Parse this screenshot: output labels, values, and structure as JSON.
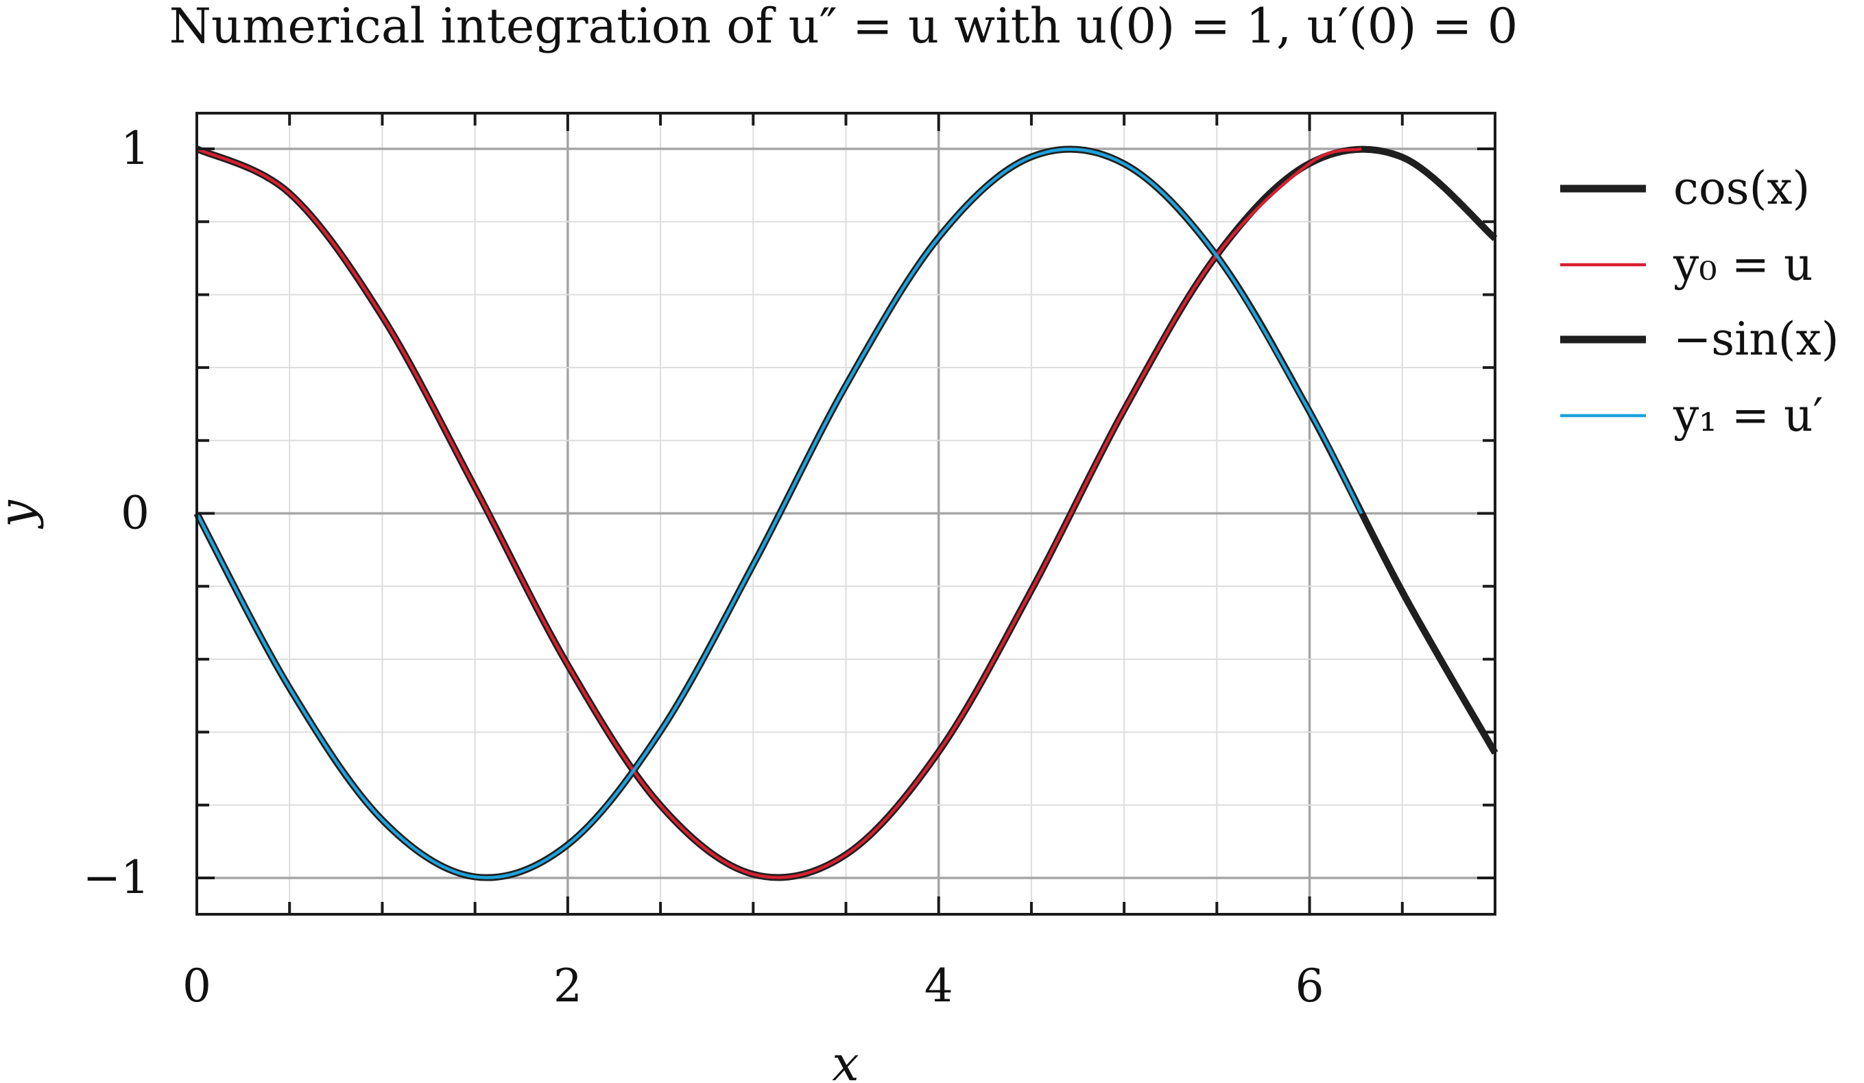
{
  "chart_data": {
    "type": "line",
    "title": "Numerical integration of u″ = u with u(0) = 1, u′(0) = 0",
    "xlabel": "x",
    "ylabel": "y",
    "xlim": [
      0,
      7
    ],
    "ylim": [
      -1.1,
      1.1
    ],
    "x_ticks": [
      0,
      2,
      4,
      6
    ],
    "x_tick_labels": [
      "0",
      "2",
      "4",
      "6"
    ],
    "y_ticks": [
      1,
      0,
      -1
    ],
    "y_tick_labels": [
      "1",
      "0",
      "−1"
    ],
    "x_minor_step": 0.5,
    "y_minor_step": 0.2,
    "grid": true,
    "legend_position": "outside-right",
    "series": [
      {
        "name": "cos(x)",
        "color": "#1f1f1f",
        "x": [
          0,
          0.5,
          1,
          1.5,
          2,
          2.5,
          3,
          3.5,
          4,
          4.5,
          5,
          5.5,
          6,
          6.5,
          7
        ],
        "y": [
          1,
          0.878,
          0.54,
          0.071,
          -0.416,
          -0.801,
          -0.99,
          -0.936,
          -0.654,
          -0.211,
          0.284,
          0.709,
          0.96,
          0.977,
          0.754
        ]
      },
      {
        "name": "y0 = u",
        "color": "#d62031",
        "x": [
          0,
          0.5,
          1,
          1.5,
          2,
          2.5,
          3,
          3.5,
          4,
          4.5,
          5,
          5.5,
          6,
          6.28
        ],
        "y": [
          1,
          0.878,
          0.54,
          0.071,
          -0.416,
          -0.801,
          -0.99,
          -0.936,
          -0.654,
          -0.211,
          0.284,
          0.709,
          0.96,
          1
        ]
      },
      {
        "name": "−sin(x)",
        "color": "#1f1f1f",
        "x": [
          0,
          0.5,
          1,
          1.5,
          2,
          2.5,
          3,
          3.5,
          4,
          4.5,
          5,
          5.5,
          6,
          6.5,
          7
        ],
        "y": [
          0,
          -0.479,
          -0.841,
          -0.997,
          -0.909,
          -0.598,
          -0.141,
          0.351,
          0.757,
          0.978,
          0.959,
          0.706,
          0.279,
          -0.215,
          -0.657
        ]
      },
      {
        "name": "y1 = u′",
        "color": "#1ea2db",
        "x": [
          0,
          0.5,
          1,
          1.5,
          2,
          2.5,
          3,
          3.5,
          4,
          4.5,
          5,
          5.5,
          6,
          6.28
        ],
        "y": [
          0,
          -0.479,
          -0.841,
          -0.997,
          -0.909,
          -0.598,
          -0.141,
          0.351,
          0.757,
          0.978,
          0.959,
          0.706,
          0.279,
          0
        ]
      }
    ],
    "legend": [
      {
        "label": "cos(x)",
        "color": "#1f1f1f",
        "style": "thick"
      },
      {
        "label": "y₀ = u",
        "color": "#d62031",
        "style": "thin"
      },
      {
        "label": "−sin(x)",
        "color": "#1f1f1f",
        "style": "thick"
      },
      {
        "label": "y₁ = u′",
        "color": "#1ea2db",
        "style": "thin"
      }
    ]
  }
}
